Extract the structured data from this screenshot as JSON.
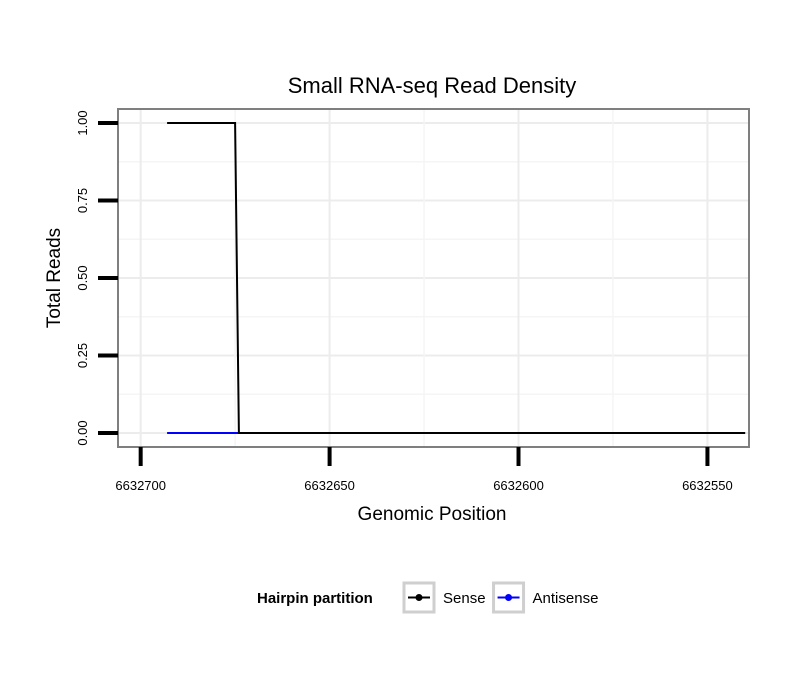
{
  "chart_data": {
    "type": "line",
    "title": "Small RNA-seq Read Density",
    "xlabel": "Genomic Position",
    "ylabel": "Total Reads",
    "x_reversed": true,
    "xlim": [
      6632706,
      6632539
    ],
    "ylim": [
      -0.045,
      1.045
    ],
    "x_ticks": [
      6632700,
      6632650,
      6632600,
      6632550
    ],
    "x_tick_labels": [
      "6632700",
      "6632650",
      "6632600",
      "6632550"
    ],
    "y_ticks": [
      0,
      0.25,
      0.5,
      0.75,
      1
    ],
    "y_tick_labels": [
      "0.00",
      "0.25",
      "0.50",
      "0.75",
      "1.00"
    ],
    "grid": true,
    "series": [
      {
        "name": "Antisense",
        "color": "#0000ff",
        "x": [
          6632693,
          6632674
        ],
        "y": [
          0,
          0
        ]
      },
      {
        "name": "Sense",
        "color": "#000000",
        "x": [
          6632693,
          6632675,
          6632674,
          6632540
        ],
        "y": [
          1,
          1,
          0,
          0
        ]
      }
    ],
    "legend": {
      "title": "Hairpin partition",
      "position": "bottom",
      "entries": [
        {
          "label": "Sense",
          "color": "#000000"
        },
        {
          "label": "Antisense",
          "color": "#0000ff"
        }
      ]
    }
  }
}
